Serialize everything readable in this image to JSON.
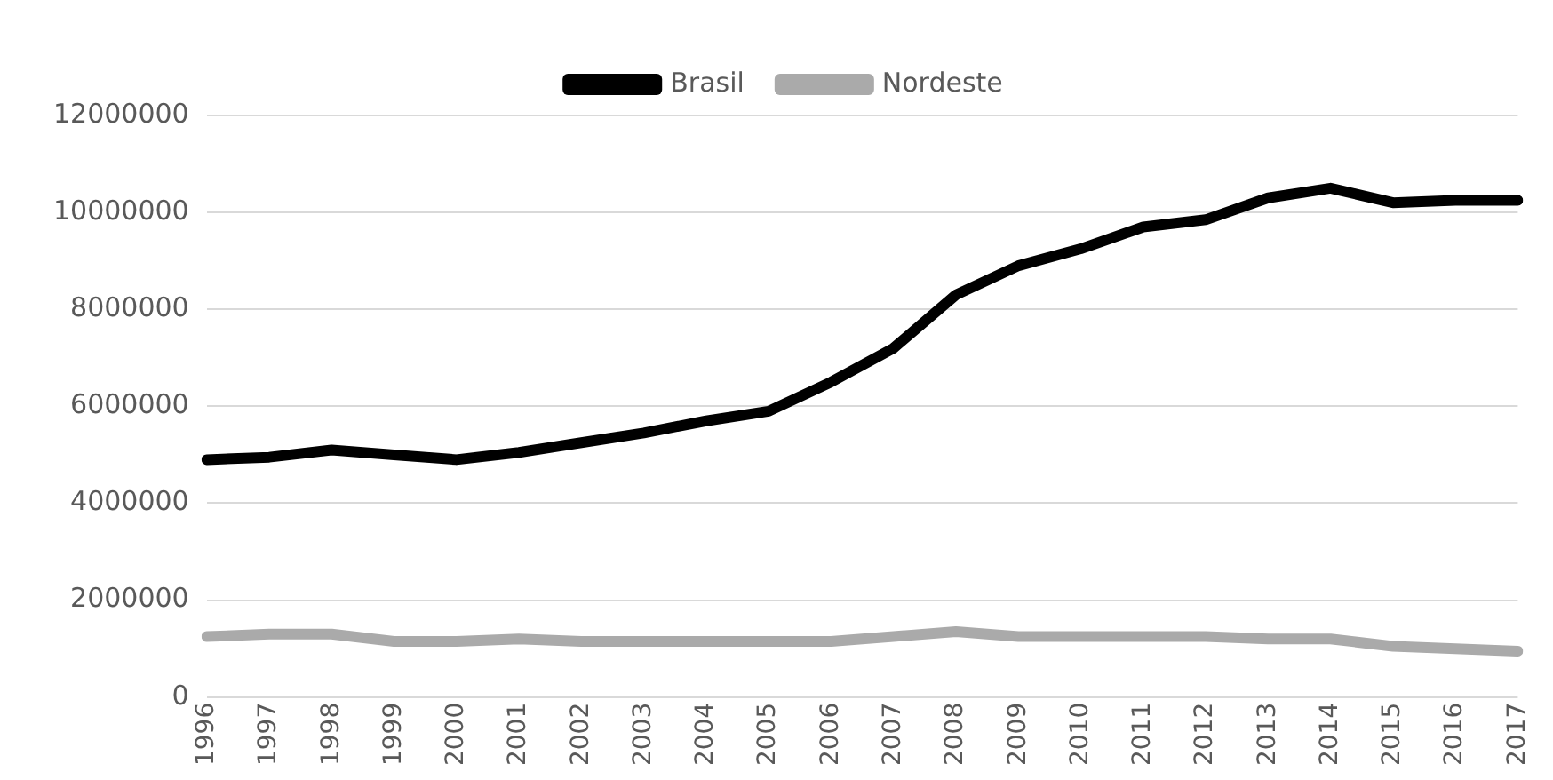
{
  "chart_data": {
    "type": "line",
    "categories": [
      "1996",
      "1997",
      "1998",
      "1999",
      "2000",
      "2001",
      "2002",
      "2003",
      "2004",
      "2005",
      "2006",
      "2007",
      "2008",
      "2009",
      "2010",
      "2011",
      "2012",
      "2013",
      "2014",
      "2015",
      "2016",
      "2017"
    ],
    "series": [
      {
        "name": "Brasil",
        "color": "#000000",
        "values": [
          4900000,
          4950000,
          5100000,
          5000000,
          4900000,
          5050000,
          5250000,
          5450000,
          5700000,
          5900000,
          6500000,
          7200000,
          8300000,
          8900000,
          9250000,
          9700000,
          9850000,
          10300000,
          10500000,
          10200000,
          10250000,
          10250000
        ]
      },
      {
        "name": "Nordeste",
        "color": "#aaaaaa",
        "values": [
          1250000,
          1300000,
          1300000,
          1150000,
          1150000,
          1200000,
          1150000,
          1150000,
          1150000,
          1150000,
          1150000,
          1250000,
          1350000,
          1250000,
          1250000,
          1250000,
          1250000,
          1200000,
          1200000,
          1050000,
          1000000,
          950000
        ]
      }
    ],
    "ylim": [
      0,
      12000000
    ],
    "yticks": [
      0,
      2000000,
      4000000,
      6000000,
      8000000,
      10000000,
      12000000
    ],
    "grid": "y",
    "legend": "top",
    "marker": "none",
    "line_style": "solid"
  }
}
